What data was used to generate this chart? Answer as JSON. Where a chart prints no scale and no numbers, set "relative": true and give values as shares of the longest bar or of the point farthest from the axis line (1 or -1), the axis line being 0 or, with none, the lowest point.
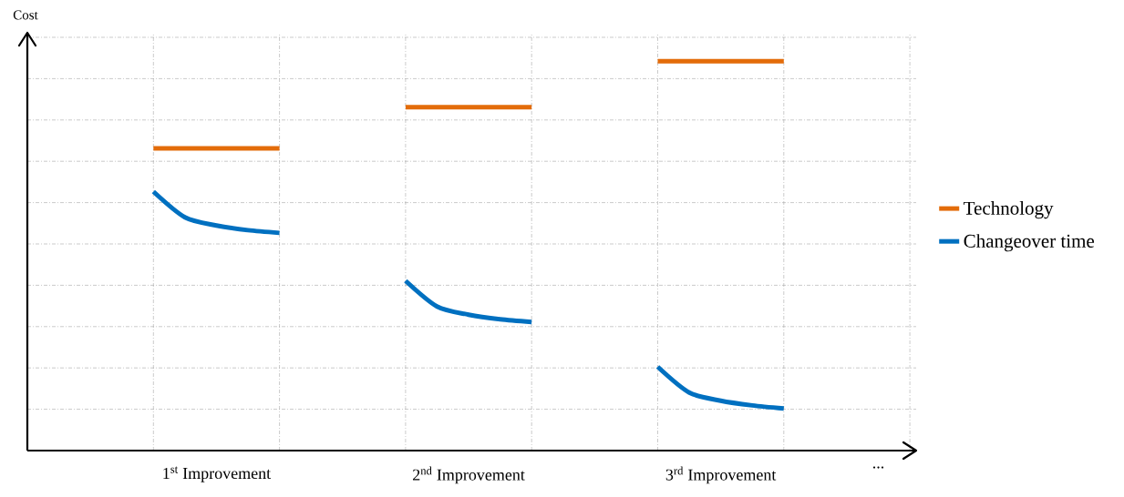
{
  "chart_data": {
    "type": "line",
    "relative": true,
    "annotations": [
      "Cost"
    ],
    "categories": [
      null,
      null,
      "1$^{st}$ Improvement",
      null,
      null,
      null,
      null,
      null,
      null,
      null,
      "2$^{nd}$ Improvement",
      null,
      null,
      null,
      null,
      null,
      null,
      null,
      "3$^{rd}$ Improvement",
      null,
      null,
      null,
      null,
      "...",
      null
    ],
    "grid": true,
    "legend": "right",
    "line_style": "solid",
    "marker": "none",
    "series": [
      {
        "name": "Technology",
        "color": "#e36c0a",
        "values": [
          0.776,
          0.776,
          0.776,
          0.776,
          0.776,
          null,
          null,
          null,
          0.882,
          0.882,
          0.882,
          0.882,
          0.882,
          null,
          null,
          null,
          1.0,
          1.0,
          1.0,
          1.0,
          1.0,
          null,
          null,
          null,
          null
        ]
      },
      {
        "name": "Changeover time",
        "color": "#0070c0",
        "values": [
          0.665,
          0.599,
          0.578,
          0.566,
          0.559,
          null,
          null,
          null,
          0.436,
          0.37,
          0.349,
          0.337,
          0.33,
          null,
          null,
          null,
          0.215,
          0.149,
          0.128,
          0.116,
          0.108,
          null,
          null,
          null,
          null
        ]
      }
    ]
  }
}
